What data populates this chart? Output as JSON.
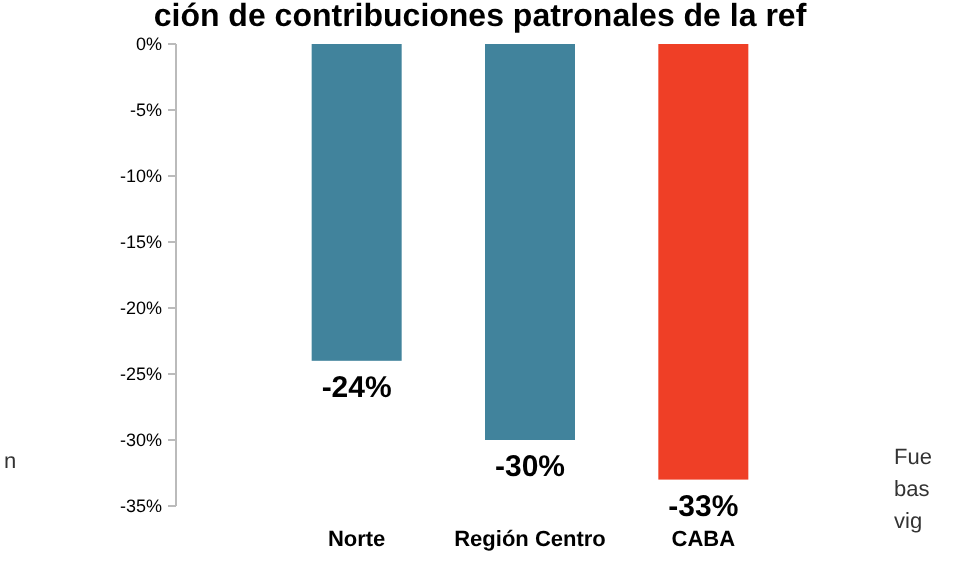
{
  "chart_data": {
    "type": "bar",
    "title": "ción de contribuciones patronales de la ref",
    "categories": [
      "Norte",
      "Región Centro",
      "CABA"
    ],
    "values": [
      -24,
      -30,
      -33
    ],
    "colors": [
      "#41839c",
      "#41839c",
      "#ef3f26"
    ],
    "ylim": [
      -35,
      0
    ],
    "yticks": [
      {
        "value": 0,
        "label": "0%"
      },
      {
        "value": -5,
        "label": "-5%"
      },
      {
        "value": -10,
        "label": "-10%"
      },
      {
        "value": -15,
        "label": "-15%"
      },
      {
        "value": -20,
        "label": "-20%"
      },
      {
        "value": -25,
        "label": "-25%"
      },
      {
        "value": -30,
        "label": "-30%"
      },
      {
        "value": -35,
        "label": "-35%"
      }
    ],
    "value_labels": [
      "-24%",
      "-30%",
      "-33%"
    ],
    "annotations": [
      "n",
      "Fue",
      "bas",
      "vig"
    ],
    "grid": false
  }
}
